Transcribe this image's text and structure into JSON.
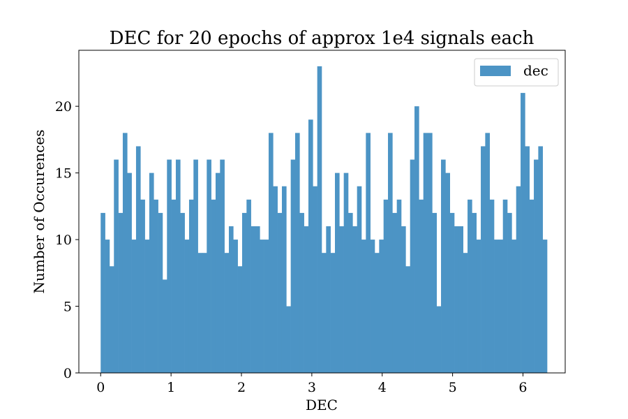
{
  "chart_data": {
    "type": "bar",
    "title": "DEC for 20 epochs of approx 1e4 signals each",
    "xlabel": "DEC",
    "ylabel": "Number of Occurences",
    "xlim": [
      -0.31,
      6.6
    ],
    "ylim": [
      0,
      24.2
    ],
    "bin_start": 0.0,
    "bin_width": 0.0628,
    "xticks": [
      0,
      1,
      2,
      3,
      4,
      5,
      6
    ],
    "yticks": [
      0,
      5,
      10,
      15,
      20
    ],
    "grid": false,
    "legend_position": "top-right",
    "bar_color": "#4c94c5",
    "series": [
      {
        "name": "dec",
        "values": [
          12,
          10,
          8,
          16,
          12,
          18,
          15,
          10,
          17,
          13,
          10,
          15,
          13,
          12,
          7,
          16,
          13,
          16,
          12,
          10,
          13,
          16,
          9,
          9,
          16,
          13,
          15,
          16,
          9,
          11,
          10,
          8,
          12,
          13,
          11,
          11,
          10,
          10,
          18,
          14,
          12,
          14,
          5,
          16,
          18,
          12,
          11,
          19,
          14,
          23,
          9,
          11,
          9,
          15,
          11,
          15,
          12,
          11,
          14,
          10,
          18,
          10,
          9,
          10,
          13,
          18,
          12,
          13,
          11,
          8,
          16,
          20,
          13,
          18,
          18,
          12,
          5,
          16,
          15,
          12,
          11,
          11,
          9,
          13,
          12,
          10,
          17,
          18,
          13,
          10,
          10,
          13,
          12,
          10,
          14,
          21,
          17,
          13,
          16,
          17,
          10
        ]
      }
    ]
  }
}
